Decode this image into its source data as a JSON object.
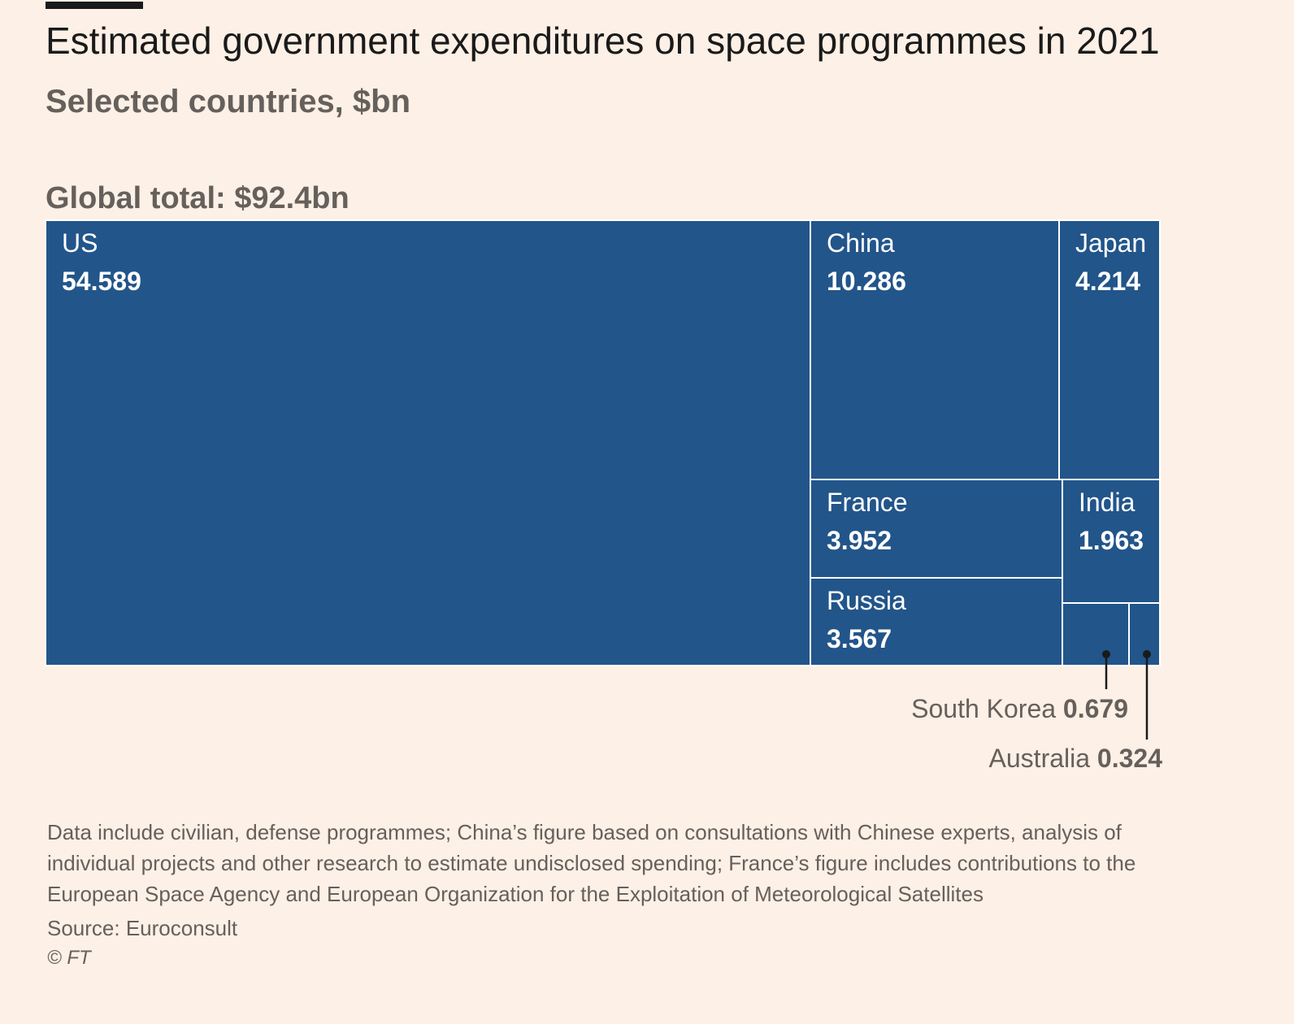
{
  "header": {
    "title": "Estimated government expenditures on space programmes in 2021",
    "subtitle": "Selected countries, $bn"
  },
  "global_total": "Global total: $92.4bn",
  "colors": {
    "background": "#fdf0e6",
    "tile": "#22558a",
    "tile_border": "#ffffff",
    "tile_text": "#ffffff",
    "callout_label": "#66605c",
    "callout_line": "#1a1a1a"
  },
  "chart_data": {
    "type": "treemap",
    "title": "Estimated government expenditures on space programmes in 2021",
    "subtitle": "Selected countries, $bn",
    "unit": "$bn",
    "total_label": "Global total: $92.4bn",
    "total": 92.4,
    "categories": [
      "US",
      "China",
      "Japan",
      "France",
      "India",
      "Russia",
      "South Korea",
      "Australia"
    ],
    "values": [
      54.589,
      10.286,
      4.214,
      3.952,
      1.963,
      3.567,
      0.679,
      0.324
    ],
    "value_labels": [
      "54.589",
      "10.286",
      "4.214",
      "3.952",
      "1.963",
      "3.567",
      "0.679",
      "0.324"
    ],
    "labelled_inside": [
      "US",
      "China",
      "Japan",
      "France",
      "India",
      "Russia"
    ],
    "labelled_outside": [
      "South Korea",
      "Australia"
    ]
  },
  "footer": {
    "note": "Data include civilian, defense programmes; China’s figure based on consultations with Chinese experts, analysis of individual projects and other research to estimate undisclosed spending; France’s figure includes contributions to the European Space Agency and European Organization for the Exploitation of Meteorological Satellites",
    "source": "Source: Euroconsult",
    "credit": "© FT"
  }
}
